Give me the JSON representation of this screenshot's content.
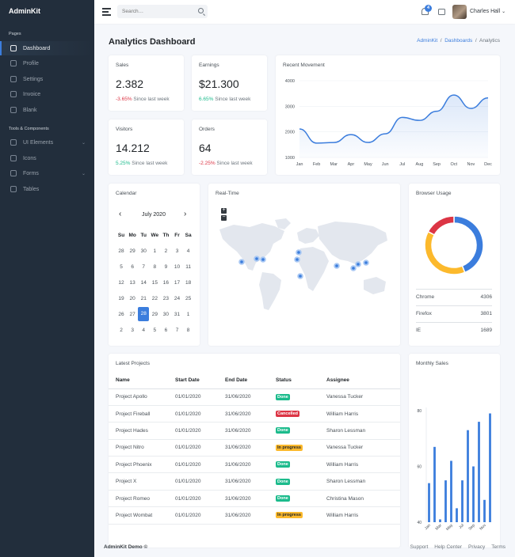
{
  "sidebar": {
    "brand": "AdminKit",
    "sections": [
      "Pages",
      "Tools & Components"
    ],
    "items": [
      {
        "label": "Dashboard",
        "icon": "sliders-icon",
        "active": true
      },
      {
        "label": "Profile",
        "icon": "user-icon"
      },
      {
        "label": "Settings",
        "icon": "settings-icon"
      },
      {
        "label": "Invoice",
        "icon": "credit-card-icon"
      },
      {
        "label": "Blank",
        "icon": "book-icon"
      },
      {
        "label": "UI Elements",
        "icon": "briefcase-icon",
        "expandable": true
      },
      {
        "label": "Icons",
        "icon": "coffee-icon"
      },
      {
        "label": "Forms",
        "icon": "check-circle-icon",
        "expandable": true
      },
      {
        "label": "Tables",
        "icon": "list-icon"
      }
    ]
  },
  "topbar": {
    "search_placeholder": "Search…",
    "notification_count": "4",
    "user_name": "Charles Hall"
  },
  "page": {
    "title_bold": "Analytics",
    "title_rest": " Dashboard",
    "breadcrumbs": [
      "AdminKit",
      "Dashboards",
      "Analytics"
    ]
  },
  "stats": [
    {
      "title": "Sales",
      "value": "2.382",
      "change": "-3.65%",
      "trend": "negative",
      "note": "Since last week"
    },
    {
      "title": "Earnings",
      "value": "$21.300",
      "change": "6.65%",
      "trend": "positive",
      "note": "Since last week"
    },
    {
      "title": "Visitors",
      "value": "14.212",
      "change": "5.25%",
      "trend": "positive",
      "note": "Since last week"
    },
    {
      "title": "Orders",
      "value": "64",
      "change": "-2.25%",
      "trend": "negative",
      "note": "Since last week"
    }
  ],
  "cards": {
    "recent_movement": "Recent Movement",
    "calendar": "Calendar",
    "realtime": "Real-Time",
    "browser_usage": "Browser Usage",
    "latest_projects": "Latest Projects",
    "monthly_sales": "Monthly Sales"
  },
  "calendar": {
    "month_label": "July 2020",
    "prev": "‹",
    "next": "›",
    "weekdays": [
      "Su",
      "Mo",
      "Tu",
      "We",
      "Th",
      "Fr",
      "Sa"
    ],
    "weeks": [
      [
        "28",
        "29",
        "30",
        "1",
        "2",
        "3",
        "4"
      ],
      [
        "5",
        "6",
        "7",
        "8",
        "9",
        "10",
        "11"
      ],
      [
        "12",
        "13",
        "14",
        "15",
        "16",
        "17",
        "18"
      ],
      [
        "19",
        "20",
        "21",
        "22",
        "23",
        "24",
        "25"
      ],
      [
        "26",
        "27",
        "28",
        "29",
        "30",
        "31",
        "1"
      ],
      [
        "2",
        "3",
        "4",
        "5",
        "6",
        "7",
        "8"
      ]
    ],
    "selected": "28"
  },
  "map": {
    "zoom_in": "+",
    "zoom_out": "−"
  },
  "browser_usage": [
    {
      "name": "Chrome",
      "value": "4306",
      "color": "#3b7ddd"
    },
    {
      "name": "Firefox",
      "value": "3801",
      "color": "#fcb92c"
    },
    {
      "name": "IE",
      "value": "1689",
      "color": "#dc3545"
    }
  ],
  "projects": {
    "columns": [
      "Name",
      "Start Date",
      "End Date",
      "Status",
      "Assignee"
    ],
    "rows": [
      {
        "name": "Project Apollo",
        "start": "01/01/2020",
        "end": "31/06/2020",
        "status": "Done",
        "assignee": "Vanessa Tucker"
      },
      {
        "name": "Project Fireball",
        "start": "01/01/2020",
        "end": "31/06/2020",
        "status": "Cancelled",
        "assignee": "William Harris"
      },
      {
        "name": "Project Hades",
        "start": "01/01/2020",
        "end": "31/06/2020",
        "status": "Done",
        "assignee": "Sharon Lessman"
      },
      {
        "name": "Project Nitro",
        "start": "01/01/2020",
        "end": "31/06/2020",
        "status": "In progress",
        "assignee": "Vanessa Tucker"
      },
      {
        "name": "Project Phoenix",
        "start": "01/01/2020",
        "end": "31/06/2020",
        "status": "Done",
        "assignee": "William Harris"
      },
      {
        "name": "Project X",
        "start": "01/01/2020",
        "end": "31/06/2020",
        "status": "Done",
        "assignee": "Sharon Lessman"
      },
      {
        "name": "Project Romeo",
        "start": "01/01/2020",
        "end": "31/06/2020",
        "status": "Done",
        "assignee": "Christina Mason"
      },
      {
        "name": "Project Wombat",
        "start": "01/01/2020",
        "end": "31/06/2020",
        "status": "In progress",
        "assignee": "William Harris"
      }
    ]
  },
  "footer": {
    "left": "AdminKit Demo ©",
    "links": [
      "Support",
      "Help Center",
      "Privacy",
      "Terms"
    ]
  },
  "chart_data": [
    {
      "type": "area",
      "title": "Recent Movement",
      "categories": [
        "Jan",
        "Feb",
        "Mar",
        "Apr",
        "May",
        "Jun",
        "Jul",
        "Aug",
        "Sep",
        "Oct",
        "Nov",
        "Dec"
      ],
      "values": [
        2115,
        1562,
        1584,
        1892,
        1587,
        1923,
        2566,
        2448,
        2805,
        3438,
        2917,
        3327
      ],
      "ylim": [
        1000,
        4000
      ],
      "yticks": [
        1000,
        2000,
        3000,
        4000
      ],
      "color": "#3b7ddd"
    },
    {
      "type": "pie",
      "title": "Browser Usage",
      "categories": [
        "Chrome",
        "Firefox",
        "IE"
      ],
      "values": [
        4306,
        3801,
        1689
      ],
      "colors": [
        "#3b7ddd",
        "#fcb92c",
        "#dc3545"
      ]
    },
    {
      "type": "bar",
      "title": "Monthly Sales",
      "categories": [
        "Jan",
        "Feb",
        "Mar",
        "Apr",
        "May",
        "Jun",
        "Jul",
        "Aug",
        "Sep",
        "Oct",
        "Nov",
        "Dec"
      ],
      "values": [
        54,
        67,
        41,
        55,
        62,
        45,
        55,
        73,
        60,
        76,
        48,
        79
      ],
      "ylim": [
        40,
        80
      ],
      "yticks": [
        40,
        60,
        80
      ],
      "color": "#3b7ddd"
    }
  ]
}
